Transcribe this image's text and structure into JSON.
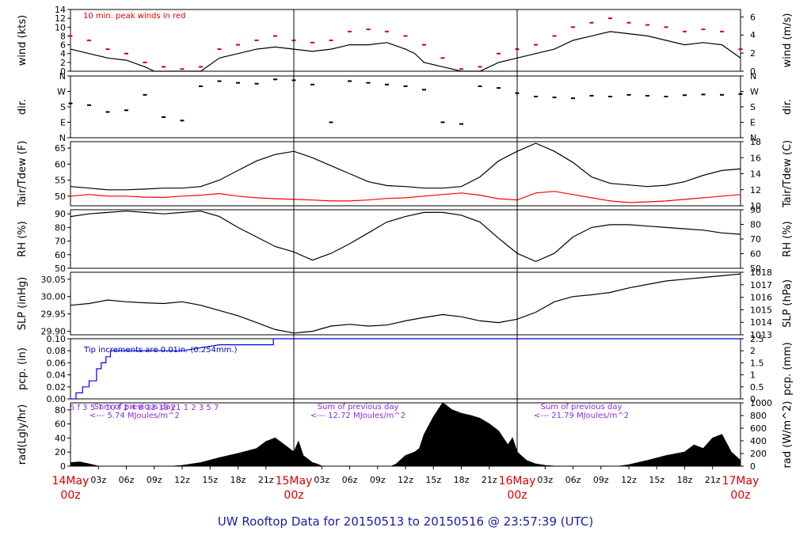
{
  "colors": {
    "main": "#000000",
    "peak": "#d40000",
    "dew": "#ff0000",
    "pcp": "#0000ff",
    "note": "#8a2be2",
    "time": "#d40000",
    "title": "#1a1aa6"
  },
  "chart_data": [
    {
      "type": "line",
      "ylabel": "wind (kts)",
      "ylabel_right": "wind (m/s)",
      "ylim": [
        0,
        14
      ],
      "yticks": [
        "0",
        "2",
        "4",
        "6",
        "8",
        "10",
        "12",
        "14"
      ],
      "yticks_right": [
        "0",
        "2",
        "4",
        "6"
      ],
      "annotation": "10 min. peak winds in red",
      "series": [
        {
          "key": "wind",
          "x": [
            0,
            2,
            4,
            6,
            8,
            9,
            10,
            11,
            12,
            14,
            16,
            18,
            20,
            22,
            24,
            26,
            28,
            30,
            32,
            34,
            36,
            37,
            38,
            40,
            42,
            44,
            46,
            48,
            50,
            52,
            54,
            56,
            58,
            60,
            62,
            64,
            66,
            68,
            70,
            72
          ],
          "values": [
            5,
            4,
            3,
            2.5,
            1,
            0,
            0,
            0,
            0,
            0,
            3,
            4,
            5,
            5.5,
            5,
            4.5,
            5,
            6,
            6,
            6.5,
            5,
            4,
            2,
            1,
            0,
            0,
            2,
            3,
            4,
            5,
            7,
            8,
            9,
            8.5,
            8,
            7,
            6,
            6.5,
            6,
            3
          ]
        },
        {
          "key": "peak",
          "x": [
            0,
            2,
            4,
            6,
            8,
            10,
            12,
            14,
            16,
            18,
            20,
            22,
            24,
            26,
            28,
            30,
            32,
            34,
            36,
            38,
            40,
            42,
            44,
            46,
            48,
            50,
            52,
            54,
            56,
            58,
            60,
            62,
            64,
            66,
            68,
            70,
            72
          ],
          "values": [
            8,
            7,
            5,
            4,
            2,
            1,
            0.5,
            1,
            5,
            6,
            7,
            8,
            7,
            6.5,
            7,
            9,
            9.5,
            9,
            8,
            6,
            3,
            0.5,
            1,
            4,
            5,
            6,
            8,
            10,
            11,
            12,
            11,
            10.5,
            10,
            9,
            9.5,
            9,
            5
          ]
        }
      ]
    },
    {
      "type": "scatter",
      "ylabel": "dir.",
      "ylabel_right": "dir.",
      "yticks": [
        "N",
        "E",
        "S",
        "W",
        "N"
      ],
      "series": [
        {
          "key": "dir",
          "x": [
            0,
            2,
            4,
            6,
            8,
            10,
            12,
            14,
            16,
            18,
            20,
            22,
            24,
            26,
            28,
            30,
            32,
            34,
            36,
            38,
            40,
            42,
            44,
            46,
            48,
            50,
            52,
            54,
            56,
            58,
            60,
            62,
            64,
            66,
            68,
            70,
            72
          ],
          "values": [
            200,
            190,
            150,
            160,
            250,
            120,
            100,
            300,
            330,
            320,
            315,
            340,
            335,
            310,
            90,
            330,
            320,
            310,
            300,
            280,
            90,
            80,
            300,
            290,
            260,
            240,
            235,
            230,
            245,
            240,
            250,
            245,
            240,
            248,
            252,
            250,
            255
          ]
        }
      ]
    },
    {
      "type": "line",
      "ylabel": "Tair/Tdew (F)",
      "ylabel_right": "Tair/Tdew (C)",
      "ylim": [
        47,
        67
      ],
      "yticks": [
        "50",
        "55",
        "60",
        "65"
      ],
      "yticks_right": [
        "10",
        "12",
        "14",
        "16",
        "18"
      ],
      "series": [
        {
          "key": "tair",
          "x": [
            0,
            2,
            4,
            6,
            8,
            10,
            12,
            14,
            16,
            18,
            20,
            22,
            24,
            26,
            28,
            30,
            32,
            34,
            36,
            38,
            40,
            42,
            44,
            46,
            48,
            50,
            52,
            54,
            56,
            58,
            60,
            62,
            64,
            66,
            68,
            70,
            72
          ],
          "values": [
            53,
            52.5,
            52,
            52,
            52.2,
            52.5,
            52.5,
            53,
            55,
            58,
            61,
            63,
            64,
            62,
            59.5,
            57,
            54.5,
            53.3,
            53,
            52.5,
            52.5,
            53,
            56,
            61,
            64,
            66.5,
            64,
            60.5,
            56,
            54,
            53.5,
            53,
            53.4,
            54.5,
            56.5,
            58,
            58.5
          ]
        },
        {
          "key": "tdew",
          "x": [
            0,
            2,
            4,
            6,
            8,
            10,
            12,
            14,
            16,
            18,
            20,
            22,
            24,
            26,
            28,
            30,
            32,
            34,
            36,
            38,
            40,
            42,
            44,
            46,
            48,
            50,
            52,
            54,
            56,
            58,
            60,
            62,
            64,
            66,
            68,
            70,
            72
          ],
          "values": [
            50,
            50.5,
            50,
            50,
            49.7,
            49.6,
            50,
            50.3,
            50.8,
            50,
            49.5,
            49.2,
            49,
            48.8,
            48.5,
            48.5,
            48.8,
            49.3,
            49.5,
            50,
            50.5,
            51,
            50.3,
            49.2,
            48.8,
            51,
            51.5,
            50.5,
            49.5,
            48.5,
            48,
            48.2,
            48.5,
            49,
            49.5,
            50,
            50.5
          ]
        }
      ]
    },
    {
      "type": "line",
      "ylabel": "RH (%)",
      "ylabel_right": "RH (%)",
      "ylim": [
        50,
        93
      ],
      "yticks": [
        "50",
        "60",
        "70",
        "80",
        "90"
      ],
      "series": [
        {
          "key": "rh",
          "x": [
            0,
            2,
            4,
            6,
            8,
            10,
            12,
            14,
            16,
            18,
            20,
            22,
            24,
            26,
            28,
            30,
            32,
            34,
            36,
            38,
            40,
            42,
            44,
            46,
            48,
            50,
            52,
            54,
            56,
            58,
            60,
            62,
            64,
            66,
            68,
            70,
            72
          ],
          "values": [
            88,
            90,
            91,
            92,
            91,
            90,
            91,
            92,
            88,
            80,
            73,
            66,
            62,
            56,
            61,
            68,
            76,
            84,
            88,
            91,
            91,
            89,
            84,
            72,
            61,
            55,
            61,
            73,
            80,
            82,
            82,
            81,
            80,
            79,
            78,
            76,
            75
          ]
        }
      ]
    },
    {
      "type": "line",
      "ylabel": "SLP (inHg)",
      "ylabel_right": "SLP (hPa)",
      "ylim": [
        29.89,
        30.07
      ],
      "yticks": [
        "29.90",
        "29.95",
        "30.00",
        "30.05"
      ],
      "yticks_right": [
        "1013",
        "1014",
        "1015",
        "1016",
        "1017",
        "1018"
      ],
      "series": [
        {
          "key": "slp",
          "x": [
            0,
            2,
            4,
            6,
            8,
            10,
            12,
            14,
            16,
            18,
            20,
            22,
            24,
            26,
            28,
            30,
            32,
            34,
            36,
            38,
            40,
            42,
            44,
            46,
            48,
            50,
            52,
            54,
            56,
            58,
            60,
            62,
            64,
            66,
            68,
            70,
            72
          ],
          "values": [
            29.975,
            29.98,
            29.99,
            29.985,
            29.982,
            29.98,
            29.985,
            29.975,
            29.96,
            29.945,
            29.925,
            29.905,
            29.895,
            29.9,
            29.915,
            29.92,
            29.915,
            29.918,
            29.93,
            29.94,
            29.948,
            29.942,
            29.93,
            29.925,
            29.935,
            29.955,
            29.985,
            30.0,
            30.005,
            30.012,
            30.025,
            30.035,
            30.045,
            30.05,
            30.055,
            30.06,
            30.065
          ]
        }
      ]
    },
    {
      "type": "line",
      "ylabel": "pcp. (in)",
      "ylabel_right": "pcp. (mm)",
      "ylim": [
        0,
        0.1
      ],
      "yticks": [
        "0.00",
        "0.02",
        "0.04",
        "0.06",
        "0.08",
        "0.10"
      ],
      "yticks_right": [
        "0",
        "0.5",
        "1",
        "1.5",
        "2",
        "2.5"
      ],
      "annotation": "Tip increments are 0.01in. (0.254mm.)",
      "series": [
        {
          "key": "pcp",
          "x": [
            0,
            0.6,
            0.6,
            1.3,
            1.3,
            2,
            2,
            2.8,
            2.8,
            3.3,
            3.3,
            3.8,
            3.8,
            4.3,
            4.3,
            5,
            5,
            8,
            12,
            16,
            20,
            21.8,
            21.8,
            28,
            36,
            44,
            52,
            60,
            68,
            72
          ],
          "values": [
            0,
            0,
            0.01,
            0.01,
            0.02,
            0.02,
            0.03,
            0.03,
            0.05,
            0.05,
            0.06,
            0.06,
            0.07,
            0.07,
            0.08,
            0.08,
            0.08,
            0.08,
            0.08,
            0.09,
            0.09,
            0.09,
            0.1,
            0.1,
            0.1,
            0.1,
            0.1,
            0.1,
            0.1,
            0.1
          ]
        }
      ]
    },
    {
      "type": "area",
      "ylabel": "rad(Lgly/hr)",
      "ylabel_right": "rad (W/m^2)",
      "ylim": [
        0,
        90
      ],
      "yticks": [
        "0",
        "20",
        "40",
        "60",
        "80"
      ],
      "yticks_right": [
        "0",
        "200",
        "400",
        "600",
        "800",
        "1000"
      ],
      "notes": [
        {
          "line1": "Sum of previous day",
          "line2": "<--- 5.74 MJoules/m^2"
        },
        {
          "line1": "Sum of previous day",
          "line2": "<--- 12.72 MJoules/m^2"
        },
        {
          "line1": "Sum of previous day",
          "line2": "<--- 21.79 MJoules/m^2"
        }
      ],
      "top_digits": "5                              f    3    5   7   10                                        f   2    4   8   13  18   21                                                   1   2    3    5   7",
      "series": [
        {
          "key": "rad",
          "x": [
            0,
            1,
            2,
            3,
            11,
            12,
            14,
            16,
            18,
            20,
            21,
            22,
            23,
            24,
            24.5,
            25,
            26,
            26.5,
            27,
            34.5,
            35,
            36,
            37,
            37.5,
            38,
            39,
            40,
            41,
            42,
            43,
            44,
            45,
            46,
            47,
            47.5,
            48,
            49,
            50,
            51,
            52,
            59,
            60,
            62,
            64,
            66,
            67,
            68,
            69,
            70,
            71,
            72
          ],
          "values": [
            5,
            6,
            3,
            0,
            0,
            1,
            5,
            12,
            18,
            25,
            35,
            40,
            30,
            20,
            35,
            15,
            5,
            3,
            0,
            0,
            3,
            15,
            20,
            25,
            45,
            70,
            90,
            80,
            75,
            72,
            68,
            60,
            50,
            30,
            40,
            20,
            8,
            3,
            1,
            0,
            0,
            2,
            8,
            15,
            20,
            30,
            25,
            40,
            45,
            20,
            8
          ]
        }
      ]
    }
  ],
  "xaxis": {
    "hour_ticks": [
      "03z",
      "06z",
      "09z",
      "12z",
      "15z",
      "18z",
      "21z"
    ],
    "day_labels": [
      {
        "date": "14May",
        "time": "00z"
      },
      {
        "date": "15May",
        "time": "00z"
      },
      {
        "date": "16May",
        "time": "00z"
      },
      {
        "date": "17May",
        "time": "00z"
      }
    ]
  },
  "footer_title": "UW Rooftop Data for 20150513  to  20150516 @ 23:57:39  (UTC)"
}
